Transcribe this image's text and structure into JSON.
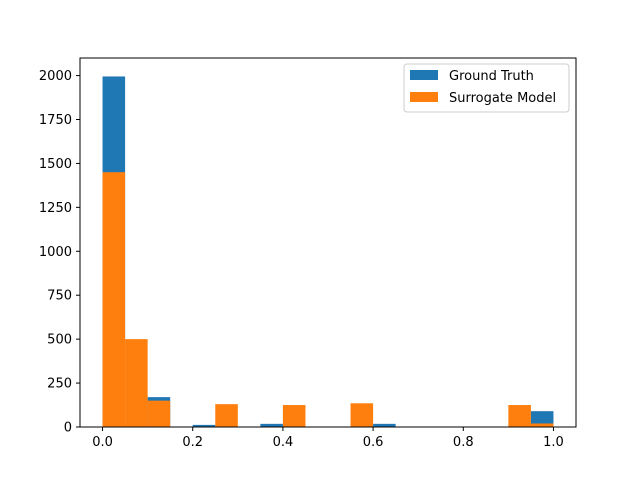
{
  "chart_data": {
    "type": "bar",
    "title": "",
    "xlabel": "",
    "ylabel": "",
    "xlim": [
      -0.05,
      1.05
    ],
    "ylim": [
      0,
      2100
    ],
    "x_ticks": [
      0.0,
      0.2,
      0.4,
      0.6,
      0.8,
      1.0
    ],
    "x_tick_labels": [
      "0.0",
      "0.2",
      "0.4",
      "0.6",
      "0.8",
      "1.0"
    ],
    "y_ticks": [
      0,
      250,
      500,
      750,
      1000,
      1250,
      1500,
      1750,
      2000
    ],
    "y_tick_labels": [
      "0",
      "250",
      "500",
      "750",
      "1000",
      "1250",
      "1500",
      "1750",
      "2000"
    ],
    "grid": false,
    "legend_position": "top-right",
    "bin_edges": [
      0.0,
      0.05,
      0.1,
      0.15,
      0.2,
      0.25,
      0.3,
      0.35,
      0.4,
      0.45,
      0.5,
      0.55,
      0.6,
      0.65,
      0.7,
      0.75,
      0.8,
      0.85,
      0.9,
      0.95,
      1.0
    ],
    "series": [
      {
        "name": "Ground Truth",
        "color": "#1f77b4",
        "values": [
          1995,
          0,
          170,
          0,
          12,
          0,
          0,
          18,
          0,
          0,
          0,
          0,
          18,
          0,
          0,
          0,
          0,
          0,
          0,
          90
        ]
      },
      {
        "name": "Surrogate Model",
        "color": "#ff7f0e",
        "values": [
          1450,
          500,
          150,
          0,
          0,
          130,
          0,
          0,
          125,
          0,
          0,
          135,
          0,
          0,
          0,
          0,
          0,
          0,
          125,
          20
        ]
      }
    ]
  }
}
